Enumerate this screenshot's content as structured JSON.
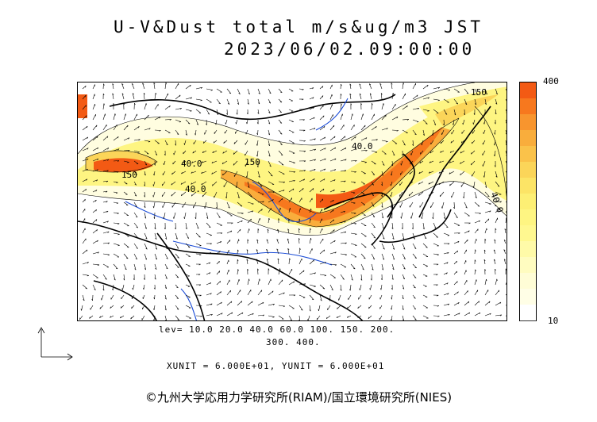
{
  "header": {
    "title": "U-V&Dust total m/s&ug/m3 JST",
    "datetime": "2023/06/02.09:00:00"
  },
  "colorbar": {
    "max_label": "400",
    "min_label": "10",
    "colors": [
      "#f35a14",
      "#f7781e",
      "#f8952e",
      "#f9ad3c",
      "#fac24a",
      "#fbd559",
      "#fce466",
      "#fdef74",
      "#fef582",
      "#fff890",
      "#fffaa8",
      "#fffcc0",
      "#fffdd6",
      "#fffee6",
      "#ffffff"
    ]
  },
  "map": {
    "contour_labels": [
      "150",
      "40.0",
      "40.0",
      "150",
      "40.0",
      "150",
      "40.0"
    ]
  },
  "footer": {
    "levels_line1": "lev= 10.0 20.0 40.0 60.0 100. 150. 200.",
    "levels_line2": "300. 400.",
    "units": "XUNIT = 6.000E+01, YUNIT = 6.000E+01",
    "credit": "©九州大学応用力学研究所(RIAM)/国立環境研究所(NIES)"
  }
}
